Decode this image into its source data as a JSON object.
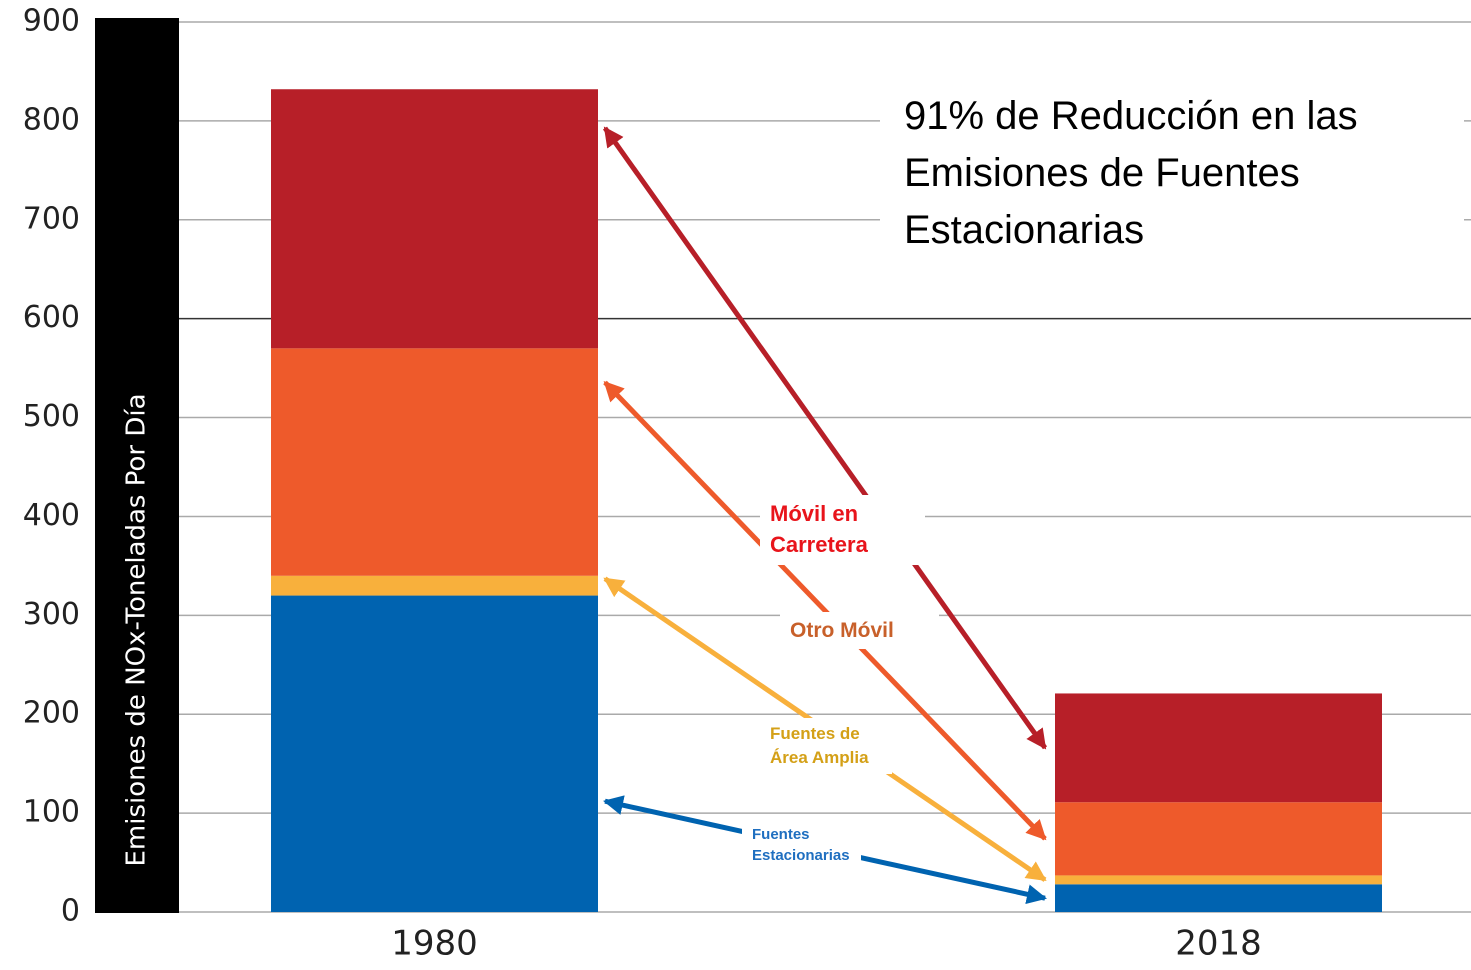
{
  "chart_data": {
    "type": "stacked_bar",
    "y_label": "Emisiones de NOx-Toneladas Por Día",
    "annotation": [
      "91% de Reducción en las",
      "Emisiones de Fuentes",
      "Estacionarias"
    ],
    "categories": [
      "1980",
      "2018"
    ],
    "series": [
      {
        "name": "Fuentes Estacionarias",
        "color": "#0063b0",
        "label_color": "#1f6fc0",
        "values": [
          320,
          28
        ]
      },
      {
        "name": "Fuentes de Área Amplia",
        "color": "#f8b03c",
        "label_color": "#d4a017",
        "values": [
          20,
          9
        ]
      },
      {
        "name": "Otro Móvil",
        "color": "#ee5a2b",
        "label_color": "#c8602a",
        "values": [
          230,
          74
        ]
      },
      {
        "name": "Móvil en Carretera",
        "color": "#b71f28",
        "label_color": "#e8141b",
        "values": [
          262,
          110
        ]
      }
    ],
    "ylim": [
      0,
      900
    ],
    "yticks": [
      0,
      100,
      200,
      300,
      400,
      500,
      600,
      700,
      800,
      900
    ],
    "grid": true
  }
}
